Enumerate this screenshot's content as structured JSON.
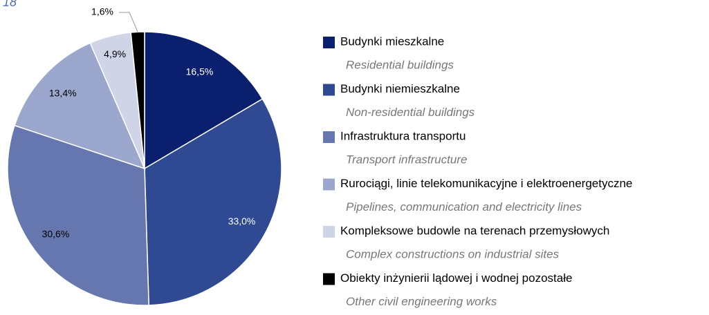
{
  "chart_data": {
    "type": "pie",
    "annotation": "18",
    "categories": [
      "Budynki mieszkalne",
      "Budynki niemieszkalne",
      "Infrastruktura transportu",
      "Rurociągi, linie telekomunikacyjne i elektroenergetyczne",
      "Kompleksowe budowle na terenach przemysłowych",
      "Obiekty inżynierii lądowej i wodnej pozostałe"
    ],
    "category_translations": [
      "Residential buildings",
      "Non-residential buildings",
      "Transport infrastructure",
      "Pipelines, communication and electricity lines",
      "Complex constructions on industrial sites",
      "Other civil engineering works"
    ],
    "values": [
      16.5,
      33.0,
      30.6,
      13.4,
      4.9,
      1.6
    ],
    "value_labels": [
      "16,5%",
      "33,0%",
      "30,6%",
      "13,4%",
      "4,9%",
      "1,6%"
    ],
    "colors": [
      "#0b1f6f",
      "#2f4993",
      "#6677b0",
      "#9ba7cc",
      "#cfd4e7",
      "#000000"
    ],
    "legend": "right"
  }
}
